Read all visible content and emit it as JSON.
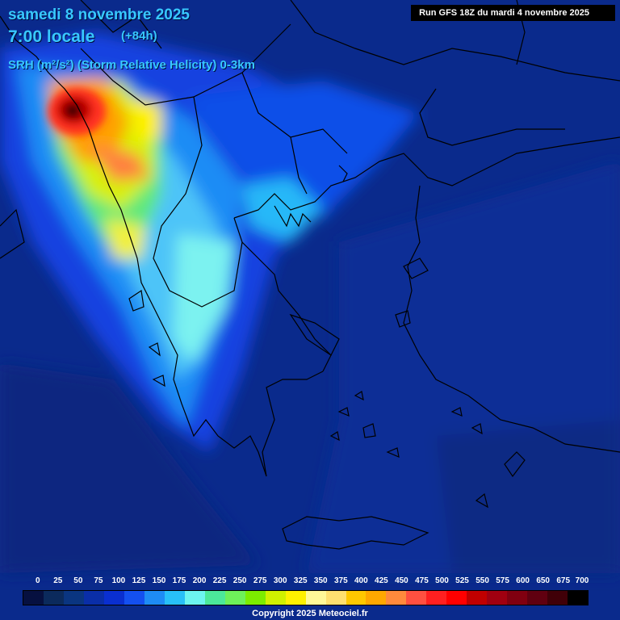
{
  "header": {
    "date": "samedi 8 novembre 2025",
    "local_time": "7:00 locale",
    "offset": "(+84h)",
    "parameter": "SRH (m²/s²) (Storm Relative Helicity) 0-3km",
    "run": "Run GFS 18Z du mardi 4 novembre 2025"
  },
  "legend": {
    "labels": [
      "0",
      "25",
      "50",
      "75",
      "100",
      "125",
      "150",
      "175",
      "200",
      "225",
      "250",
      "275",
      "300",
      "325",
      "350",
      "375",
      "400",
      "425",
      "450",
      "475",
      "500",
      "525",
      "550",
      "575",
      "600",
      "650",
      "675",
      "700"
    ],
    "colors": [
      "#061040",
      "#0b2a5c",
      "#0a3580",
      "#0a2ea8",
      "#0a2fd0",
      "#1450f0",
      "#1e8cf5",
      "#28c0f8",
      "#6cf5f0",
      "#4ce89a",
      "#6ef05a",
      "#7cec00",
      "#d0f000",
      "#fff000",
      "#fff898",
      "#ffe070",
      "#ffc800",
      "#ffa800",
      "#ff8a3c",
      "#ff5040",
      "#ff2020",
      "#ff0000",
      "#c00000",
      "#a00010",
      "#800010",
      "#600010",
      "#400008",
      "#000000"
    ]
  },
  "copyright": "Copyright 2025 Meteociel.fr"
}
